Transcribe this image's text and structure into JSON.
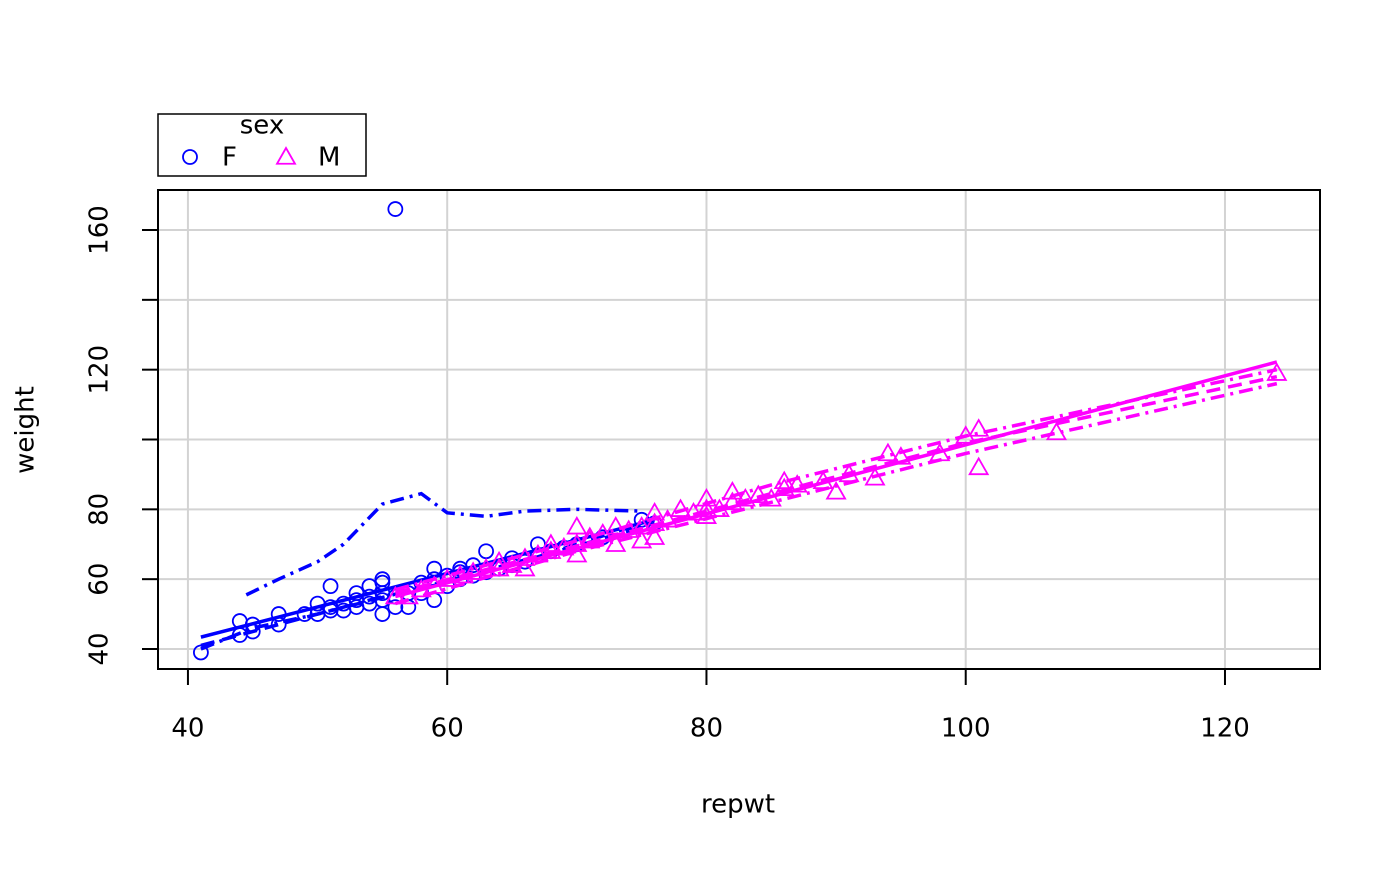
{
  "chart_data": {
    "type": "scatter",
    "x_label": "repwt",
    "y_label": "weight",
    "xlim": [
      37.69,
      127.33
    ],
    "ylim": [
      34.27,
      171.46
    ],
    "xticks": [
      40,
      60,
      80,
      100,
      120
    ],
    "yticks": [
      40,
      60,
      80,
      {
        "value": 100,
        "label": null
      },
      120,
      {
        "value": 140,
        "label": null
      },
      160
    ],
    "grid": true,
    "legend": {
      "title": "sex",
      "position": "top-left"
    },
    "series": [
      {
        "name": "F",
        "color": "#0000ff",
        "marker": "circle",
        "x": [
          41,
          44,
          44,
          45,
          45,
          47,
          47,
          49,
          50,
          50,
          51,
          51,
          51,
          52,
          52,
          53,
          53,
          53,
          54,
          54,
          54,
          55,
          55,
          55,
          55,
          55,
          56,
          56,
          56,
          57,
          57,
          58,
          58,
          59,
          59,
          59,
          60,
          60,
          61,
          61,
          61,
          62,
          62,
          63,
          63,
          64,
          65,
          65,
          66,
          67,
          67,
          68,
          69,
          70,
          72,
          75,
          76
        ],
        "values": [
          39,
          44,
          48,
          45,
          47,
          47,
          50,
          50,
          50,
          53,
          51,
          52,
          58,
          51,
          53,
          52,
          54,
          56,
          53,
          55,
          58,
          50,
          54,
          56,
          59,
          60,
          52,
          55,
          166,
          52,
          56,
          56,
          59,
          54,
          60,
          63,
          58,
          61,
          60,
          62,
          63,
          61,
          64,
          62,
          68,
          63,
          64,
          66,
          65,
          67,
          70,
          68,
          69,
          70,
          72,
          77,
          76
        ],
        "lines": [
          {
            "style": "solid",
            "x": [
              41,
              76
            ],
            "y": [
              43.4,
              77
            ]
          },
          {
            "style": "dashed",
            "x": [
              41,
              50,
              60,
              70,
              76
            ],
            "y": [
              41,
              50,
              59.5,
              69.5,
              76
            ]
          },
          {
            "style": "dashdot",
            "x": [
              44.5,
              47,
              50,
              52,
              55,
              58,
              60,
              63,
              66,
              70,
              75
            ],
            "y": [
              55.5,
              60,
              65,
              70,
              81.5,
              84.5,
              79,
              78,
              79.5,
              80,
              79.5
            ]
          },
          {
            "style": "dashdot",
            "x": [
              41,
              45,
              50,
              55,
              60,
              65,
              70,
              75
            ],
            "y": [
              40,
              46,
              50,
              55,
              59,
              64,
              70,
              76
            ]
          }
        ]
      },
      {
        "name": "M",
        "color": "#ff00ff",
        "marker": "triangle",
        "x": [
          56,
          57,
          58,
          59,
          60,
          61,
          62,
          63,
          64,
          64,
          65,
          66,
          66,
          67,
          68,
          68,
          69,
          70,
          70,
          70,
          71,
          71,
          72,
          73,
          73,
          74,
          75,
          75,
          76,
          76,
          76,
          77,
          78,
          79,
          80,
          80,
          80,
          81,
          82,
          82,
          83,
          84,
          85,
          86,
          86,
          87,
          89,
          90,
          91,
          93,
          94,
          95,
          98,
          100,
          101,
          101,
          107,
          124
        ],
        "values": [
          55,
          55,
          57,
          58,
          60,
          61,
          62,
          63,
          65,
          63,
          64,
          63,
          66,
          67,
          68,
          70,
          69,
          67,
          70,
          75,
          71,
          72,
          73,
          70,
          75,
          74,
          71,
          75,
          72,
          76,
          79,
          77,
          80,
          79,
          78,
          80,
          83,
          80,
          82,
          85,
          83,
          84,
          83,
          86,
          88,
          87,
          88,
          85,
          90,
          89,
          96,
          95,
          96,
          101,
          92,
          103,
          102,
          119
        ],
        "lines": [
          {
            "style": "solid",
            "x": [
              56,
              124
            ],
            "y": [
              55,
              122.2
            ]
          },
          {
            "style": "dashed",
            "x": [
              56,
              70,
              85,
              100,
              124
            ],
            "y": [
              56,
              69.5,
              84.5,
              99,
              118
            ]
          },
          {
            "style": "dashdot",
            "x": [
              56,
              70,
              85,
              100,
              124
            ],
            "y": [
              57,
              71,
              87,
              101,
              120
            ]
          },
          {
            "style": "dashdot",
            "x": [
              56,
              70,
              85,
              100,
              124
            ],
            "y": [
              53,
              68,
              82,
              96,
              116
            ]
          }
        ]
      }
    ]
  }
}
